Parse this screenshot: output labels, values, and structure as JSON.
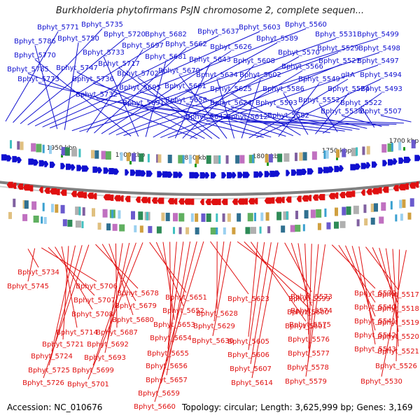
{
  "title": "Burkholderia phytofirmans PsJN chromosome 2, complete sequen...",
  "footer": {
    "accession": "Accession: NC_010676",
    "topology": "Topology: circular; Length: 3,625,999 bp; Genes: 3,169"
  },
  "colors": {
    "forward": "#1010d0",
    "reverse": "#e01010",
    "backbone": "#808080",
    "tick": "#1a9a1a"
  },
  "ticks": [
    "1950 kbp",
    "1900 kbp",
    "1850 kbp",
    "1800 kbp",
    "1750 kbp",
    "1700 kbp"
  ],
  "forward_genes": [
    "Bphyt_5771",
    "Bphyt_5735",
    "Bphyt_5720",
    "Bphyt_5682",
    "Bphyt_5637",
    "Bphyt_5603",
    "Bphyt_5560",
    "Bphyt_5786",
    "Bphyt_5750",
    "Bphyt_5531",
    "Bphyt_5499",
    "Bphyt_5697",
    "Bphyt_5662",
    "Bphyt_5626",
    "Bphyt_5589",
    "Bphyt_5529",
    "Bphyt_5498",
    "Bphyt_5770",
    "Bphyt_5733",
    "Bphyt_5681",
    "Bphyt_5570",
    "Bphyt_5527",
    "Bphyt_5497",
    "Bphyt_5643",
    "Bphyt_5608",
    "Bphyt_5566",
    "Bphyt_5785",
    "Bphyt_5747",
    "Bphyt_5717",
    "Bphyt_5702",
    "Bphyt_5670",
    "Bphyt_5634",
    "Bphyt_5602",
    "gltA",
    "Bphyt_5494",
    "Bphyt_5773",
    "Bphyt_5736",
    "Bphyt_5549",
    "Bphyt_5695",
    "Bphyt_5661",
    "Bphyt_5625",
    "Bphyt_5586",
    "Bphyt_5524",
    "Bphyt_5493",
    "Bphyt_5732",
    "Bphyt_5552",
    "Bphyt_5691",
    "Bphyt_5658",
    "Bphyt_5624",
    "Bphyt_5593",
    "Bphyt_5522",
    "Bphyt_5536",
    "Bphyt_5642",
    "Bphyt_5612",
    "Bphyt_5582",
    "Bphyt_5507"
  ],
  "reverse_genes": [
    "Bphyt_5734",
    "Bphyt_5745",
    "Bphyt_5706",
    "Bphyt_5707",
    "Bphyt_5708",
    "Bphyt_5714",
    "Bphyt_5721",
    "Bphyt_5724",
    "Bphyt_5725",
    "Bphyt_5726",
    "Bphyt_5678",
    "Bphyt_5679",
    "Bphyt_5680",
    "Bphyt_5687",
    "Bphyt_5692",
    "Bphyt_5693",
    "Bphyt_5699",
    "Bphyt_5701",
    "Bphyt_5651",
    "Bphyt_5652",
    "Bphyt_5653",
    "Bphyt_5654",
    "Bphyt_5655",
    "Bphyt_5656",
    "Bphyt_5657",
    "Bphyt_5659",
    "Bphyt_5660",
    "Bphyt_5623",
    "Bphyt_5628",
    "Bphyt_5629",
    "Bphyt_5630",
    "Bphyt_5599",
    "Bphyt_5600",
    "Bphyt_5601",
    "Bphyt_5605",
    "Bphyt_5606",
    "Bphyt_5607",
    "Bphyt_5614",
    "Bphyt_5573",
    "Bphyt_5574",
    "Bphyt_5575",
    "Bphyt_5576",
    "Bphyt_5577",
    "Bphyt_5578",
    "Bphyt_5579",
    "Bphyt_5539",
    "Bphyt_5540",
    "Bphyt_5541",
    "Bphyt_5542",
    "Bphyt_5543",
    "Bphyt_5517",
    "Bphyt_5518",
    "Bphyt_5519",
    "Bphyt_5520",
    "Bphyt_5521",
    "Bphyt_5526",
    "Bphyt_5530"
  ]
}
